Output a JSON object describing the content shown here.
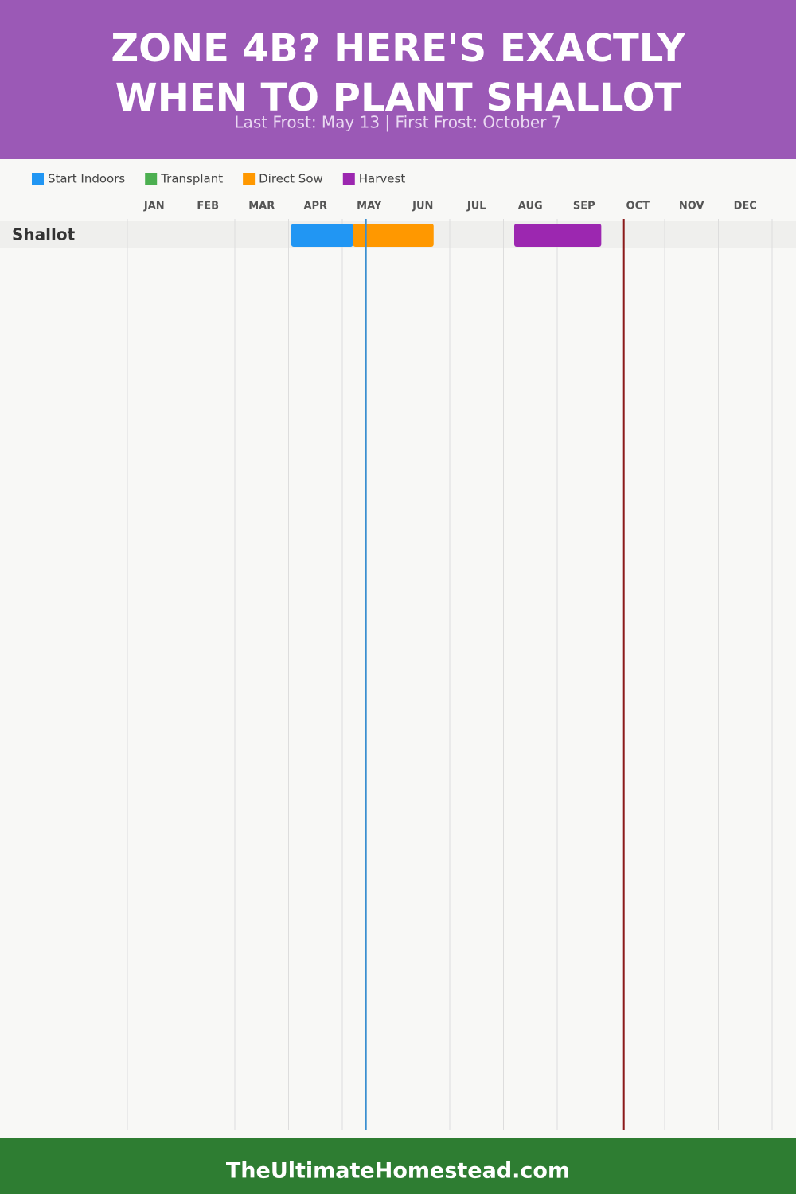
{
  "chart_data": {
    "type": "gantt",
    "title": [
      "ZONE 4B? HERE'S EXACTLY",
      "WHEN TO PLANT SHALLOT"
    ],
    "subtitle": "Last Frost: May 13 | First Frost: October 7",
    "months": [
      "JAN",
      "FEB",
      "MAR",
      "APR",
      "MAY",
      "JUN",
      "JUL",
      "AUG",
      "SEP",
      "OCT",
      "NOV",
      "DEC"
    ],
    "xlim": [
      0,
      12
    ],
    "categories": [
      "Shallot"
    ],
    "series": [
      {
        "name": "Start Indoors",
        "color": "#2196f3",
        "values": [
          [
            3.05,
            4.2
          ]
        ]
      },
      {
        "name": "Transplant",
        "color": "#4caf50",
        "values": [
          null
        ]
      },
      {
        "name": "Direct Sow",
        "color": "#ff9800",
        "values": [
          [
            4.2,
            5.7
          ]
        ]
      },
      {
        "name": "Harvest",
        "color": "#9c27b0",
        "values": [
          [
            7.2,
            8.82
          ]
        ]
      }
    ],
    "frost_lines": [
      {
        "x": 4.44,
        "color": "#3a8fd0"
      },
      {
        "x": 9.24,
        "color": "#8b1a1a"
      }
    ],
    "footer": "TheUltimateHomestead.com"
  }
}
